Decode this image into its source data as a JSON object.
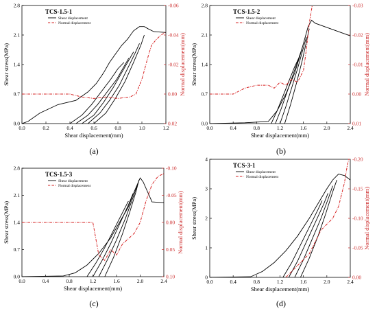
{
  "colors": {
    "shear": "#000000",
    "normal": "#d62020",
    "accent_axis": "#cc2a2a"
  },
  "legend": {
    "shear": "Shear displacement",
    "normal": "Normal displacement"
  },
  "chart_data": [
    {
      "type": "line",
      "letter": "(a)",
      "title": "TCS-1.5-1",
      "xlabel": "Shear displacement(mm)",
      "ylabel": "Shear stress(MPa)",
      "y2label": "Normal displacement(mm)",
      "xlim": [
        0,
        1.2
      ],
      "ylim": [
        0,
        2.8
      ],
      "y2lim": [
        0.02,
        -0.06
      ],
      "xticks": [
        0,
        0.2,
        0.4,
        0.6,
        0.8,
        1.0,
        1.2
      ],
      "xtick_labels": [
        "0.0",
        "0.2",
        "0.4",
        "0.6",
        "0.8",
        "1.0",
        "1.2"
      ],
      "yticks": [
        0,
        0.7,
        1.4,
        2.1,
        2.8
      ],
      "ytick_labels": [
        "0.0",
        "0.7",
        "1.4",
        "2.1",
        "2.8"
      ],
      "y2ticks": [
        0.02,
        0.0,
        -0.02,
        -0.04,
        -0.06
      ],
      "y2tick_labels": [
        "0.02",
        "0.00",
        "-0.02",
        "-0.04",
        "-0.06"
      ],
      "series": [
        {
          "name": "Shear displacement",
          "axis": "left",
          "x": [
            0.0,
            0.05,
            0.15,
            0.3,
            0.45,
            0.55,
            0.62,
            0.68,
            0.73,
            0.78,
            0.83,
            0.88,
            0.93,
            0.98,
            1.02,
            1.05,
            1.1,
            1.2
          ],
          "y": [
            0.0,
            0.05,
            0.25,
            0.45,
            0.55,
            0.75,
            0.95,
            1.2,
            1.45,
            1.65,
            1.85,
            2.0,
            2.2,
            2.3,
            2.3,
            2.25,
            2.18,
            2.16
          ]
        },
        {
          "name": "",
          "axis": "left",
          "x": [
            0.4,
            0.5,
            0.58,
            0.66,
            0.74,
            0.8,
            0.85
          ],
          "y": [
            0.0,
            0.2,
            0.45,
            0.75,
            1.05,
            1.3,
            1.45
          ]
        },
        {
          "name": "",
          "axis": "left",
          "x": [
            0.45,
            0.55,
            0.63,
            0.71,
            0.79,
            0.85,
            0.89
          ],
          "y": [
            0.0,
            0.2,
            0.45,
            0.75,
            1.05,
            1.35,
            1.55
          ]
        },
        {
          "name": "",
          "axis": "left",
          "x": [
            0.5,
            0.6,
            0.68,
            0.76,
            0.83,
            0.89,
            0.93
          ],
          "y": [
            0.0,
            0.2,
            0.5,
            0.85,
            1.2,
            1.5,
            1.7
          ]
        },
        {
          "name": "",
          "axis": "left",
          "x": [
            0.55,
            0.65,
            0.73,
            0.81,
            0.88,
            0.94,
            0.98
          ],
          "y": [
            0.0,
            0.25,
            0.55,
            0.9,
            1.3,
            1.65,
            1.9
          ]
        },
        {
          "name": "",
          "axis": "left",
          "x": [
            0.6,
            0.7,
            0.78,
            0.86,
            0.93,
            0.99,
            1.02
          ],
          "y": [
            0.0,
            0.25,
            0.6,
            1.0,
            1.45,
            1.85,
            2.1
          ]
        },
        {
          "name": "Normal displacement",
          "axis": "right",
          "x": [
            0.0,
            0.2,
            0.4,
            0.5,
            0.6,
            0.7,
            0.8,
            0.9,
            0.95,
            1.0,
            1.05,
            1.08,
            1.12,
            1.16,
            1.2
          ],
          "y": [
            0.0,
            0.0,
            0.0,
            0.002,
            0.003,
            0.002,
            0.003,
            0.002,
            0.0,
            -0.01,
            -0.025,
            -0.033,
            -0.037,
            -0.04,
            -0.042
          ]
        }
      ]
    },
    {
      "type": "line",
      "letter": "(b)",
      "title": "TCS-1.5-2",
      "xlabel": "Shear displacement(mm)",
      "ylabel": "Shear stress(MPa)",
      "y2label": "Normal displacement(mm)",
      "xlim": [
        0,
        2.4
      ],
      "ylim": [
        0,
        2.8
      ],
      "y2lim": [
        0.01,
        -0.03
      ],
      "xticks": [
        0,
        0.4,
        0.8,
        1.2,
        1.6,
        2.0,
        2.4
      ],
      "xtick_labels": [
        "0.0",
        "0.4",
        "0.8",
        "1.2",
        "1.6",
        "2.0",
        "2.4"
      ],
      "yticks": [
        0,
        0.7,
        1.4,
        2.1,
        2.8
      ],
      "ytick_labels": [
        "0.0",
        "0.7",
        "1.4",
        "2.1",
        "2.8"
      ],
      "y2ticks": [
        0.01,
        0.0,
        -0.01,
        -0.02,
        -0.03
      ],
      "y2tick_labels": [
        "0.01",
        "0.00",
        "-0.01",
        "-0.02",
        "-0.03"
      ],
      "series": [
        {
          "name": "Shear displacement",
          "axis": "left",
          "x": [
            0.0,
            0.6,
            1.0,
            1.15,
            1.3,
            1.45,
            1.55,
            1.62,
            1.68,
            1.74,
            1.8,
            2.0,
            2.4
          ],
          "y": [
            0.0,
            0.02,
            0.05,
            0.3,
            0.7,
            1.2,
            1.65,
            2.0,
            2.3,
            2.45,
            2.38,
            2.28,
            2.08
          ]
        },
        {
          "name": "",
          "axis": "left",
          "x": [
            1.05,
            1.15,
            1.25,
            1.35,
            1.45,
            1.52
          ],
          "y": [
            0.0,
            0.3,
            0.65,
            1.0,
            1.35,
            1.55
          ]
        },
        {
          "name": "",
          "axis": "left",
          "x": [
            1.12,
            1.22,
            1.32,
            1.42,
            1.52,
            1.58
          ],
          "y": [
            0.0,
            0.35,
            0.75,
            1.15,
            1.55,
            1.8
          ]
        },
        {
          "name": "",
          "axis": "left",
          "x": [
            1.2,
            1.3,
            1.4,
            1.5,
            1.6,
            1.65
          ],
          "y": [
            0.0,
            0.4,
            0.85,
            1.3,
            1.8,
            2.05
          ]
        },
        {
          "name": "",
          "axis": "left",
          "x": [
            1.28,
            1.38,
            1.48,
            1.58,
            1.66,
            1.7
          ],
          "y": [
            0.0,
            0.45,
            0.95,
            1.5,
            2.0,
            2.25
          ]
        },
        {
          "name": "Normal displacement",
          "axis": "right",
          "x": [
            0.0,
            0.2,
            0.4,
            0.6,
            0.8,
            1.0,
            1.1,
            1.2,
            1.3,
            1.4,
            1.5,
            1.6,
            1.65,
            1.7,
            1.75
          ],
          "y": [
            0.0,
            0.0,
            0.0,
            -0.002,
            -0.003,
            -0.003,
            -0.002,
            -0.004,
            -0.003,
            -0.005,
            -0.004,
            -0.008,
            -0.015,
            -0.024,
            -0.03
          ]
        }
      ]
    },
    {
      "type": "line",
      "letter": "(c)",
      "title": "TCS-1.5-3",
      "xlabel": "Shear displacement(mm)",
      "ylabel": "Shear stress(MPa)",
      "y2label": "Normal displacement(mm)",
      "xlim": [
        0,
        2.4
      ],
      "ylim": [
        0,
        2.8
      ],
      "y2lim": [
        0.1,
        -0.1
      ],
      "xticks": [
        0,
        0.4,
        0.8,
        1.2,
        1.6,
        2.0,
        2.4
      ],
      "xtick_labels": [
        "0.0",
        "0.4",
        "0.8",
        "1.2",
        "1.6",
        "2.0",
        "2.4"
      ],
      "yticks": [
        0,
        0.7,
        1.4,
        2.1,
        2.8
      ],
      "ytick_labels": [
        "0.0",
        "0.7",
        "1.4",
        "2.1",
        "2.8"
      ],
      "y2ticks": [
        0.1,
        0.05,
        0.0,
        -0.05,
        -0.1
      ],
      "y2tick_labels": [
        "0.10",
        "0.05",
        "0.00",
        "-0.05",
        "-0.10"
      ],
      "series": [
        {
          "name": "Shear displacement",
          "axis": "left",
          "x": [
            0.0,
            0.7,
            0.9,
            1.1,
            1.3,
            1.5,
            1.65,
            1.8,
            1.9,
            2.0,
            2.05,
            2.2,
            2.4
          ],
          "y": [
            0.0,
            0.02,
            0.1,
            0.3,
            0.6,
            1.0,
            1.4,
            1.8,
            2.2,
            2.55,
            2.45,
            1.93,
            1.91
          ]
        },
        {
          "name": "",
          "axis": "left",
          "x": [
            1.1,
            1.25,
            1.4,
            1.55,
            1.7,
            1.8
          ],
          "y": [
            0.0,
            0.35,
            0.75,
            1.2,
            1.65,
            1.95
          ]
        },
        {
          "name": "",
          "axis": "left",
          "x": [
            1.2,
            1.35,
            1.5,
            1.65,
            1.8,
            1.88
          ],
          "y": [
            0.0,
            0.4,
            0.85,
            1.35,
            1.85,
            2.15
          ]
        },
        {
          "name": "",
          "axis": "left",
          "x": [
            1.3,
            1.45,
            1.6,
            1.75,
            1.88,
            1.95
          ],
          "y": [
            0.0,
            0.45,
            0.95,
            1.5,
            2.05,
            2.35
          ]
        },
        {
          "name": "",
          "axis": "left",
          "x": [
            1.4,
            1.55,
            1.7,
            1.82,
            1.93,
            1.98
          ],
          "y": [
            0.0,
            0.5,
            1.1,
            1.65,
            2.2,
            2.5
          ]
        },
        {
          "name": "Normal displacement",
          "axis": "right",
          "x": [
            0.0,
            0.4,
            0.8,
            1.2,
            1.3,
            1.4,
            1.5,
            1.6,
            1.7,
            1.8,
            1.9,
            2.0,
            2.1,
            2.2,
            2.3,
            2.4
          ],
          "y": [
            0.0,
            0.0,
            0.0,
            0.0,
            0.06,
            0.07,
            0.05,
            0.06,
            0.04,
            0.03,
            0.02,
            0.0,
            -0.04,
            -0.07,
            -0.085,
            -0.09
          ]
        }
      ]
    },
    {
      "type": "line",
      "letter": "(d)",
      "title": "TCS-3-1",
      "xlabel": "Shear displacement(mm)",
      "ylabel": "Shear stress(MPa)",
      "y2label": "Normal displacement(mm)",
      "xlim": [
        0,
        2.4
      ],
      "ylim": [
        0,
        4
      ],
      "y2lim": [
        0,
        -0.2
      ],
      "xticks": [
        0,
        0.4,
        0.8,
        1.2,
        1.6,
        2.0,
        2.4
      ],
      "xtick_labels": [
        "0.0",
        "0.4",
        "0.8",
        "1.2",
        "1.6",
        "2.0",
        "2.4"
      ],
      "yticks": [
        0,
        1,
        2,
        3,
        4
      ],
      "ytick_labels": [
        "0",
        "1",
        "2",
        "3",
        "4"
      ],
      "y2ticks": [
        0,
        -0.05,
        -0.1,
        -0.15,
        -0.2
      ],
      "y2tick_labels": [
        "0.00",
        "-0.05",
        "-0.10",
        "-0.15",
        "-0.20"
      ],
      "series": [
        {
          "name": "Shear displacement",
          "axis": "left",
          "x": [
            0.0,
            0.7,
            0.9,
            1.1,
            1.3,
            1.5,
            1.7,
            1.85,
            2.0,
            2.1,
            2.2,
            2.3,
            2.4
          ],
          "y": [
            0.0,
            0.02,
            0.2,
            0.5,
            0.9,
            1.4,
            2.0,
            2.5,
            3.0,
            3.3,
            3.5,
            3.45,
            3.3
          ]
        },
        {
          "name": "",
          "axis": "left",
          "x": [
            1.25,
            1.4,
            1.55,
            1.7,
            1.85,
            1.92
          ],
          "y": [
            0.0,
            0.5,
            1.1,
            1.7,
            2.3,
            2.6
          ]
        },
        {
          "name": "",
          "axis": "left",
          "x": [
            1.35,
            1.5,
            1.65,
            1.8,
            1.95,
            2.02
          ],
          "y": [
            0.0,
            0.55,
            1.2,
            1.85,
            2.5,
            2.85
          ]
        },
        {
          "name": "",
          "axis": "left",
          "x": [
            1.45,
            1.6,
            1.75,
            1.9,
            2.03,
            2.1
          ],
          "y": [
            0.0,
            0.6,
            1.3,
            2.0,
            2.7,
            3.1
          ]
        },
        {
          "name": "",
          "axis": "left",
          "x": [
            1.55,
            1.7,
            1.85,
            1.98,
            2.1,
            2.17
          ],
          "y": [
            0.0,
            0.65,
            1.4,
            2.15,
            2.9,
            3.3
          ]
        },
        {
          "name": "Normal displacement",
          "axis": "right",
          "x": [
            1.3,
            1.4,
            1.5,
            1.6,
            1.7,
            1.8,
            1.9,
            2.0,
            2.1,
            2.2,
            2.3,
            2.35,
            2.4
          ],
          "y": [
            0.0,
            -0.01,
            -0.02,
            -0.03,
            -0.04,
            -0.06,
            -0.08,
            -0.09,
            -0.1,
            -0.12,
            -0.16,
            -0.19,
            -0.21
          ]
        }
      ]
    }
  ]
}
